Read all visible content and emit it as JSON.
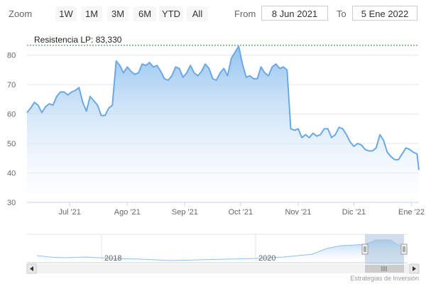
{
  "toolbar": {
    "zoom_label": "Zoom",
    "buttons": [
      "1W",
      "1M",
      "3M",
      "6M",
      "YTD",
      "All"
    ],
    "from_label": "From",
    "from_value": "8 Jun 2021",
    "to_label": "To",
    "to_value": "5 Ene 2022"
  },
  "credit": "Estrategias de Inversión",
  "colors": {
    "line": "#6aa9e6",
    "fill_top": "#8ec0ef",
    "fill_bottom": "#ffffff",
    "resistance": "#2e7d32",
    "grid": "#e6e6e6",
    "navigator_mask": "#a9c3df",
    "scrollbar": "#e8e8e8"
  },
  "chart_data": {
    "type": "area",
    "title": "",
    "xlabel": "",
    "ylabel": "",
    "ylim": [
      30,
      85
    ],
    "yticks": [
      30,
      40,
      50,
      60,
      70,
      80
    ],
    "grid": true,
    "legend": "none",
    "date_range": [
      "2021-06-08",
      "2022-01-05"
    ],
    "xticks": [
      {
        "date": "2021-07-01",
        "label": "Jul '21"
      },
      {
        "date": "2021-08-01",
        "label": "Ago '21"
      },
      {
        "date": "2021-09-01",
        "label": "Sep '21"
      },
      {
        "date": "2021-10-01",
        "label": "Oct '21"
      },
      {
        "date": "2021-11-01",
        "label": "Nov '21"
      },
      {
        "date": "2021-12-01",
        "label": "Dic '21"
      },
      {
        "date": "2022-01-01",
        "label": "Ene '22"
      }
    ],
    "annotations": [
      {
        "type": "hline",
        "y": 83.33,
        "label": "Resistencia LP: 83,330",
        "style": "dashed"
      }
    ],
    "series": [
      {
        "x": [
          "2021-06-08",
          "2021-06-10",
          "2021-06-12",
          "2021-06-14",
          "2021-06-16",
          "2021-06-18",
          "2021-06-20",
          "2021-06-22",
          "2021-06-24",
          "2021-06-26",
          "2021-06-28",
          "2021-06-30",
          "2021-07-02",
          "2021-07-04",
          "2021-07-06",
          "2021-07-08",
          "2021-07-10",
          "2021-07-12",
          "2021-07-14",
          "2021-07-16",
          "2021-07-18",
          "2021-07-20",
          "2021-07-22",
          "2021-07-24",
          "2021-07-26",
          "2021-07-28",
          "2021-07-30",
          "2021-08-01",
          "2021-08-03",
          "2021-08-05",
          "2021-08-07",
          "2021-08-09",
          "2021-08-11",
          "2021-08-13",
          "2021-08-15",
          "2021-08-17",
          "2021-08-19",
          "2021-08-21",
          "2021-08-23",
          "2021-08-25",
          "2021-08-27",
          "2021-08-29",
          "2021-08-31",
          "2021-09-02",
          "2021-09-04",
          "2021-09-06",
          "2021-09-08",
          "2021-09-10",
          "2021-09-12",
          "2021-09-14",
          "2021-09-16",
          "2021-09-18",
          "2021-09-20",
          "2021-09-22",
          "2021-09-24",
          "2021-09-26",
          "2021-09-28",
          "2021-09-30",
          "2021-10-02",
          "2021-10-04",
          "2021-10-06",
          "2021-10-08",
          "2021-10-10",
          "2021-10-12",
          "2021-10-14",
          "2021-10-16",
          "2021-10-18",
          "2021-10-20",
          "2021-10-22",
          "2021-10-24",
          "2021-10-26",
          "2021-10-28",
          "2021-10-30",
          "2021-11-01",
          "2021-11-03",
          "2021-11-05",
          "2021-11-07",
          "2021-11-09",
          "2021-11-11",
          "2021-11-13",
          "2021-11-15",
          "2021-11-17",
          "2021-11-19",
          "2021-11-21",
          "2021-11-23",
          "2021-11-25",
          "2021-11-27",
          "2021-11-29",
          "2021-12-01",
          "2021-12-03",
          "2021-12-05",
          "2021-12-07",
          "2021-12-09",
          "2021-12-11",
          "2021-12-13",
          "2021-12-15",
          "2021-12-17",
          "2021-12-19",
          "2021-12-21",
          "2021-12-23",
          "2021-12-25",
          "2021-12-27",
          "2021-12-29",
          "2021-12-31",
          "2022-01-02",
          "2022-01-04",
          "2022-01-05"
        ],
        "y": [
          60.5,
          62,
          64,
          63,
          60.5,
          62.5,
          63.5,
          63,
          66,
          67.5,
          67.5,
          66.5,
          67.5,
          68,
          69,
          64,
          61,
          66,
          64.5,
          63,
          59.5,
          59.5,
          62,
          63,
          78,
          76.5,
          74,
          76,
          74.5,
          73.5,
          74,
          77,
          76.5,
          77.5,
          76,
          76.5,
          74.5,
          72,
          71.5,
          73,
          76,
          75.5,
          72.5,
          74,
          76.5,
          74,
          73,
          74.5,
          77,
          75.5,
          72,
          71.5,
          74,
          75.5,
          73,
          79,
          81,
          83,
          77,
          72.5,
          73,
          72,
          72,
          76,
          74,
          73,
          76,
          77,
          75.5,
          76,
          75,
          55,
          54.5,
          55,
          52,
          53,
          52,
          53.5,
          52.5,
          53,
          55,
          55,
          52,
          53,
          55.5,
          55,
          53,
          50.5,
          49,
          50,
          49.5,
          48,
          47.5,
          47.5,
          48.5,
          53,
          51,
          47,
          45.5,
          44.5,
          44.5,
          46.5,
          48.5,
          48,
          47,
          46.5,
          41
        ]
      }
    ],
    "navigator": {
      "x_ticks": [
        "2018",
        "2020"
      ],
      "selection": "last 7 months"
    }
  }
}
